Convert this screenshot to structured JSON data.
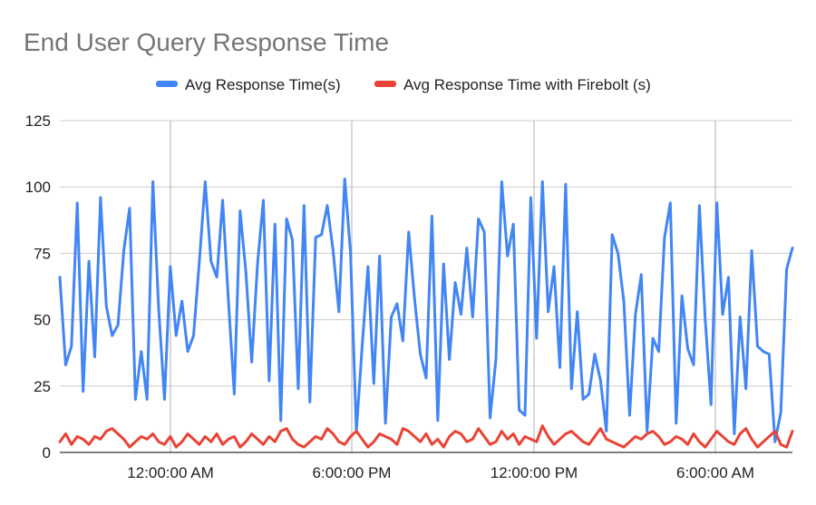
{
  "chart_data": {
    "type": "line",
    "title": "End User Query Response Time",
    "xlabel": "",
    "ylabel": "",
    "ylim": [
      0,
      125
    ],
    "yticks": [
      0,
      25,
      50,
      75,
      100,
      125
    ],
    "xticks": [
      "12:00:00 AM",
      "6:00:00 PM",
      "12:00:00 PM",
      "6:00:00 AM"
    ],
    "grid": true,
    "legend_position": "top",
    "series": [
      {
        "name": "Avg Response Time(s)",
        "color": "#4285F4",
        "values": [
          66,
          33,
          40,
          94,
          23,
          72,
          36,
          96,
          55,
          44,
          48,
          76,
          92,
          20,
          38,
          20,
          102,
          54,
          20,
          70,
          44,
          57,
          38,
          44,
          72,
          102,
          72,
          66,
          95,
          57,
          22,
          91,
          68,
          34,
          71,
          95,
          27,
          86,
          12,
          88,
          80,
          24,
          93,
          19,
          81,
          82,
          93,
          76,
          53,
          103,
          75,
          8,
          40,
          70,
          26,
          74,
          11,
          51,
          56,
          42,
          83,
          58,
          37,
          28,
          89,
          12,
          71,
          35,
          64,
          52,
          77,
          51,
          88,
          83,
          13,
          35,
          102,
          74,
          86,
          16,
          14,
          96,
          43,
          102,
          53,
          70,
          32,
          101,
          24,
          53,
          20,
          22,
          37,
          27,
          8,
          82,
          75,
          57,
          14,
          52,
          67,
          8,
          43,
          38,
          81,
          94,
          11,
          59,
          39,
          33,
          93,
          50,
          18,
          94,
          52,
          66,
          7,
          51,
          24,
          76,
          40,
          38,
          37,
          4,
          15,
          69,
          77
        ],
        "peak_values": [
          103,
          102,
          102,
          102,
          101,
          96
        ]
      },
      {
        "name": "Avg Response Time with Firebolt (s)",
        "color": "#EA4335",
        "values": [
          4,
          7,
          3,
          6,
          5,
          3,
          6,
          5,
          8,
          9,
          7,
          5,
          2,
          4,
          6,
          5,
          7,
          4,
          3,
          6,
          2,
          4,
          7,
          5,
          3,
          6,
          4,
          7,
          3,
          5,
          6,
          2,
          4,
          7,
          5,
          3,
          6,
          4,
          8,
          9,
          5,
          3,
          2,
          4,
          6,
          5,
          9,
          7,
          4,
          3,
          6,
          8,
          5,
          2,
          4,
          7,
          6,
          5,
          3,
          9,
          8,
          6,
          4,
          7,
          3,
          5,
          2,
          6,
          8,
          7,
          4,
          5,
          9,
          6,
          3,
          4,
          8,
          5,
          7,
          3,
          6,
          5,
          4,
          10,
          6,
          3,
          5,
          7,
          8,
          6,
          4,
          3,
          6,
          9,
          5,
          4,
          3,
          2,
          4,
          6,
          5,
          7,
          8,
          6,
          3,
          4,
          6,
          5,
          3,
          7,
          4,
          2,
          5,
          8,
          6,
          4,
          3,
          7,
          9,
          5,
          2,
          4,
          6,
          8,
          3,
          2,
          8
        ]
      }
    ]
  }
}
